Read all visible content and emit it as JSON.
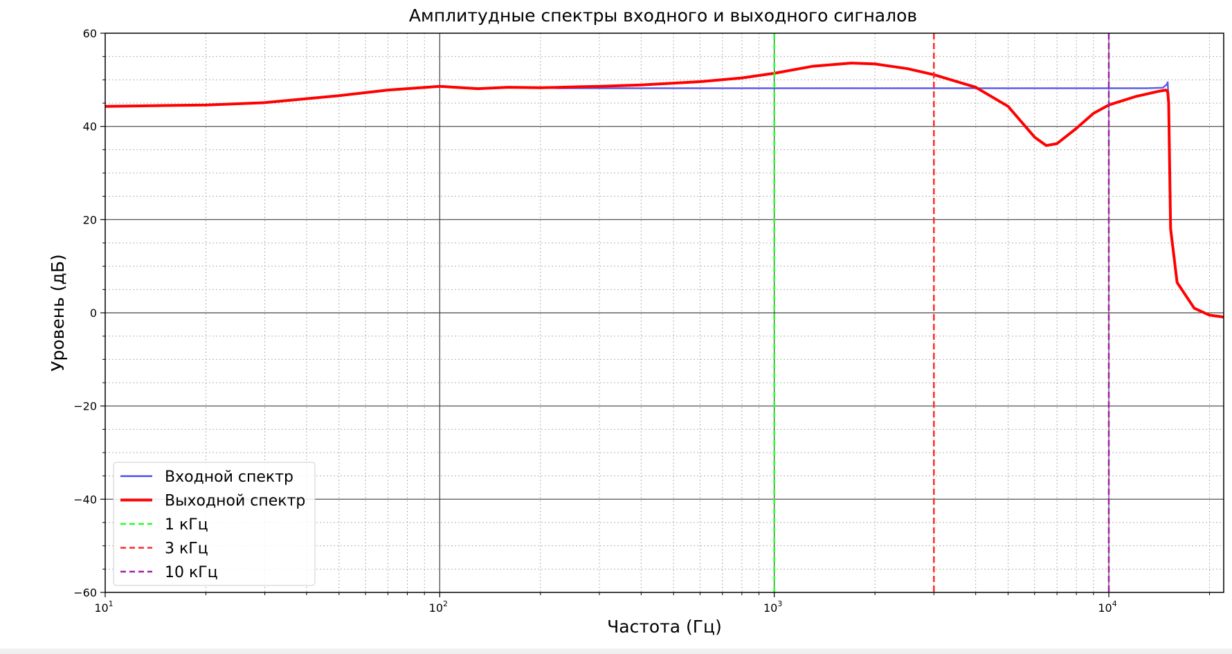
{
  "chart_data": {
    "type": "line",
    "title": "Амплитудные спектры входного и выходного сигналов",
    "xlabel": "Частота (Гц)",
    "ylabel": "Уровень (дБ)",
    "xscale": "log",
    "xlim": [
      10,
      22050
    ],
    "ylim": [
      -60,
      60
    ],
    "x_ticks": [
      {
        "value": 10,
        "base": "10",
        "exp": "1"
      },
      {
        "value": 100,
        "base": "10",
        "exp": "2"
      },
      {
        "value": 1000,
        "base": "10",
        "exp": "3"
      },
      {
        "value": 10000,
        "base": "10",
        "exp": "4"
      }
    ],
    "y_ticks": [
      {
        "value": 60,
        "label": "60"
      },
      {
        "value": 40,
        "label": "40"
      },
      {
        "value": 20,
        "label": "20"
      },
      {
        "value": 0,
        "label": "0"
      },
      {
        "value": -20,
        "label": "−20"
      },
      {
        "value": -40,
        "label": "−40"
      },
      {
        "value": -60,
        "label": "−60"
      }
    ],
    "grid": {
      "major": true,
      "minor": true
    },
    "legend_position": "bottom-left",
    "series": [
      {
        "name": "Входной спектр",
        "color": "#4a4ae8",
        "style": "solid",
        "x": [
          10,
          20,
          30,
          50,
          70,
          100,
          130,
          160,
          200,
          230,
          260,
          300,
          400,
          600,
          1000,
          2000,
          4000,
          7000,
          10000,
          13000,
          14500,
          14900,
          15000,
          15100,
          15300,
          16000,
          18000,
          20000,
          22050
        ],
        "y": [
          44.3,
          44.6,
          45.1,
          46.6,
          47.8,
          48.6,
          48.1,
          48.4,
          48.3,
          48.2,
          48.2,
          48.2,
          48.2,
          48.2,
          48.2,
          48.2,
          48.2,
          48.2,
          48.2,
          48.2,
          48.3,
          49.0,
          49.5,
          45.0,
          18.0,
          6.5,
          1.0,
          -0.5,
          -0.9
        ]
      },
      {
        "name": "Выходной спектр",
        "color": "#ff0000",
        "style": "solid",
        "x": [
          10,
          20,
          30,
          50,
          70,
          100,
          130,
          160,
          200,
          230,
          260,
          300,
          400,
          600,
          800,
          1000,
          1300,
          1700,
          2000,
          2500,
          3000,
          4000,
          5000,
          6000,
          6500,
          7000,
          8000,
          9000,
          10000,
          12000,
          14000,
          14800,
          15000,
          15100,
          15300,
          16000,
          18000,
          20000,
          22050
        ],
        "y": [
          44.3,
          44.6,
          45.1,
          46.6,
          47.8,
          48.6,
          48.1,
          48.4,
          48.3,
          48.4,
          48.5,
          48.6,
          48.9,
          49.6,
          50.4,
          51.4,
          52.9,
          53.6,
          53.4,
          52.4,
          51.1,
          48.4,
          44.3,
          37.7,
          35.9,
          36.3,
          39.6,
          42.8,
          44.6,
          46.4,
          47.5,
          47.8,
          47.5,
          45.0,
          18.0,
          6.5,
          1.0,
          -0.5,
          -0.9
        ]
      }
    ],
    "vertical_lines": [
      {
        "name": "1 кГц",
        "x": 1000,
        "color": "#22ff22"
      },
      {
        "name": "3 кГц",
        "x": 3000,
        "color": "#ff2a2a"
      },
      {
        "name": "10 кГц",
        "x": 10000,
        "color": "#a020a0"
      }
    ]
  }
}
